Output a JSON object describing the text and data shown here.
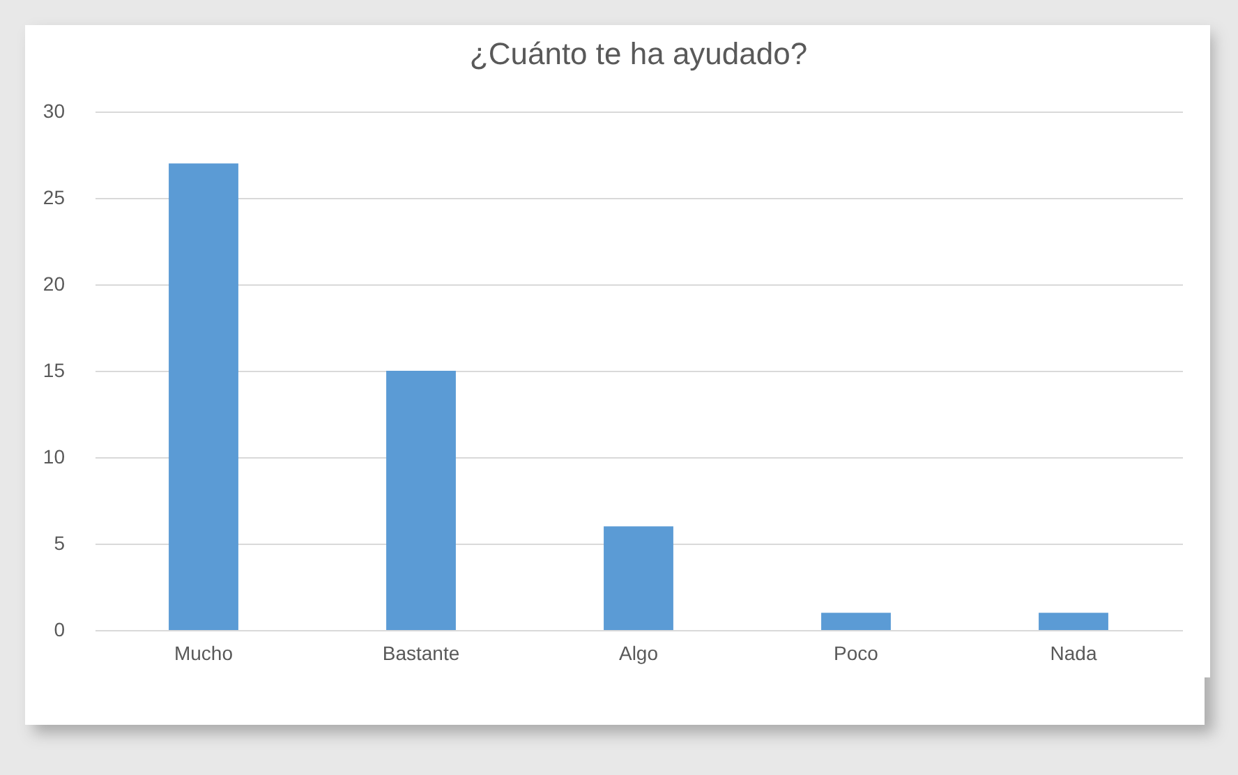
{
  "chart_data": {
    "type": "bar",
    "title": "¿Cuánto te ha ayudado?",
    "categories": [
      "Mucho",
      "Bastante",
      "Algo",
      "Poco",
      "Nada"
    ],
    "values": [
      27,
      15,
      6,
      1,
      1
    ],
    "color": "#5b9bd5",
    "ylim": [
      0,
      30
    ],
    "yticks": [
      0,
      5,
      10,
      15,
      20,
      25,
      30
    ],
    "grid": "y"
  }
}
